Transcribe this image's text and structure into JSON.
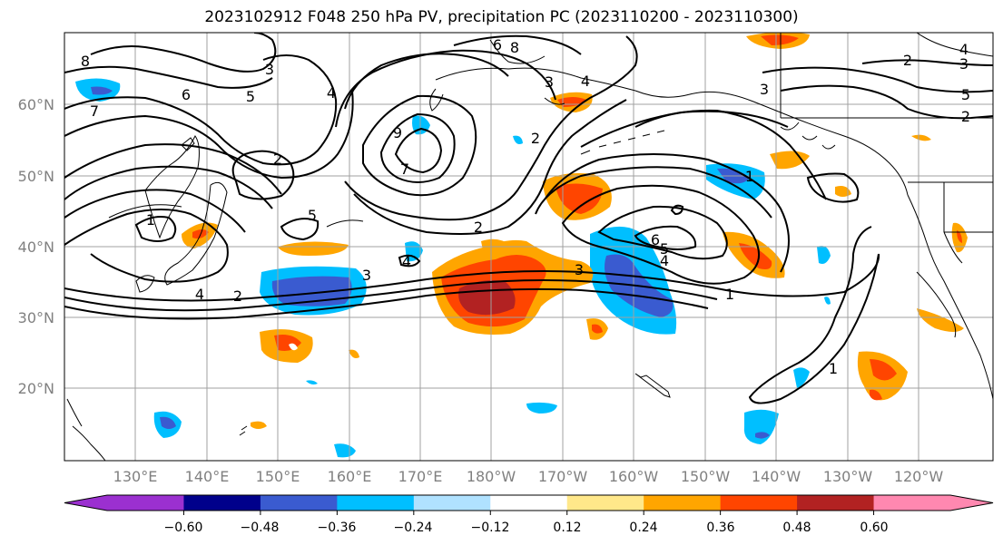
{
  "title": "2023102912 F048 250 hPa PV, precipitation PC (2023110200 - 2023110300)",
  "lat_labels": [
    "60°N",
    "50°N",
    "40°N",
    "30°N",
    "20°N"
  ],
  "lon_labels": [
    "130°E",
    "140°E",
    "150°E",
    "160°E",
    "170°E",
    "180°W",
    "170°W",
    "160°W",
    "150°W",
    "140°W",
    "130°W",
    "120°W"
  ],
  "contour_labels": [
    "8",
    "7",
    "6",
    "5",
    "4",
    "3",
    "2",
    "1",
    "2",
    "3",
    "4",
    "5",
    "6",
    "8",
    "9",
    "7",
    "2",
    "3",
    "4",
    "1",
    "2",
    "3",
    "4",
    "5",
    "6",
    "1",
    "1",
    "2",
    "3",
    "4",
    "2",
    "3",
    "5",
    "4"
  ],
  "colorbar": {
    "ticks": [
      "−0.60",
      "−0.48",
      "−0.36",
      "−0.24",
      "−0.12",
      "0.12",
      "0.24",
      "0.36",
      "0.48",
      "0.60"
    ],
    "colors": [
      "#9b30d0",
      "#00008b",
      "#3a5bd0",
      "#00bfff",
      "#b0e2ff",
      "#ffffff",
      "#ffe88a",
      "#ffa500",
      "#ff4500",
      "#b22222",
      "#ff88b0"
    ]
  }
}
